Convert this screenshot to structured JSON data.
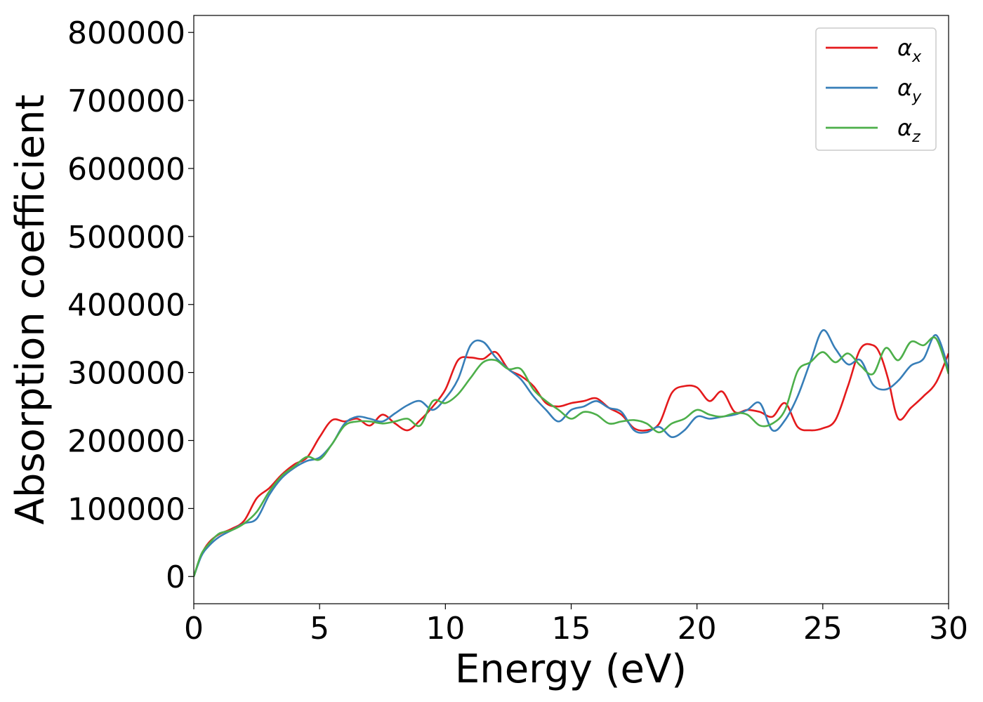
{
  "chart_data": {
    "type": "line",
    "title": "",
    "xlabel": "Energy (eV)",
    "ylabel": "Absorption coefficient",
    "xlim": [
      0,
      30
    ],
    "ylim": [
      -40000,
      825000
    ],
    "xticks": [
      0,
      5,
      10,
      15,
      20,
      25,
      30
    ],
    "yticks": [
      0,
      100000,
      200000,
      300000,
      400000,
      500000,
      600000,
      700000,
      800000
    ],
    "grid": false,
    "legend_position": "top-right",
    "series": [
      {
        "name": "α_x",
        "label_main": "α",
        "label_sub": "x",
        "color": "#e41a1c",
        "x": [
          0,
          0.3,
          0.6,
          1.0,
          1.5,
          2.0,
          2.5,
          3.0,
          3.5,
          4.0,
          4.5,
          5.0,
          5.5,
          6.0,
          6.5,
          7.0,
          7.5,
          8.0,
          8.5,
          9.0,
          9.5,
          10.0,
          10.5,
          11.0,
          11.5,
          12.0,
          12.5,
          13.0,
          13.5,
          14.0,
          14.5,
          15.0,
          15.5,
          16.0,
          16.5,
          17.0,
          17.5,
          18.0,
          18.5,
          19.0,
          19.5,
          20.0,
          20.5,
          21.0,
          21.5,
          22.0,
          22.5,
          23.0,
          23.5,
          24.0,
          24.5,
          25.0,
          25.5,
          26.0,
          26.5,
          27.0,
          27.3,
          27.6,
          28.0,
          28.5,
          29.0,
          29.5,
          30.0
        ],
        "y": [
          0,
          32000,
          50000,
          62000,
          70000,
          82000,
          115000,
          130000,
          150000,
          165000,
          175000,
          205000,
          230000,
          228000,
          232000,
          222000,
          238000,
          225000,
          215000,
          230000,
          250000,
          275000,
          318000,
          322000,
          320000,
          330000,
          305000,
          295000,
          280000,
          255000,
          250000,
          255000,
          258000,
          262000,
          248000,
          238000,
          218000,
          215000,
          225000,
          270000,
          280000,
          278000,
          258000,
          272000,
          242000,
          245000,
          242000,
          235000,
          255000,
          220000,
          215000,
          218000,
          230000,
          280000,
          335000,
          340000,
          325000,
          290000,
          232000,
          248000,
          265000,
          285000,
          328000
        ]
      },
      {
        "name": "α_y",
        "label_main": "α",
        "label_sub": "y",
        "color": "#377eb8",
        "x": [
          0,
          0.3,
          0.6,
          1.0,
          1.5,
          2.0,
          2.5,
          3.0,
          3.5,
          4.0,
          4.5,
          5.0,
          5.5,
          6.0,
          6.5,
          7.0,
          7.5,
          8.0,
          8.5,
          9.0,
          9.5,
          10.0,
          10.5,
          11.0,
          11.5,
          12.0,
          12.5,
          13.0,
          13.5,
          14.0,
          14.5,
          15.0,
          15.5,
          16.0,
          16.5,
          17.0,
          17.5,
          18.0,
          18.5,
          19.0,
          19.5,
          20.0,
          20.5,
          21.0,
          21.5,
          22.0,
          22.5,
          23.0,
          23.5,
          24.0,
          24.5,
          25.0,
          25.5,
          26.0,
          26.5,
          27.0,
          27.5,
          28.0,
          28.5,
          29.0,
          29.5,
          30.0
        ],
        "y": [
          0,
          30000,
          45000,
          58000,
          68000,
          78000,
          85000,
          120000,
          145000,
          160000,
          170000,
          175000,
          195000,
          225000,
          235000,
          232000,
          228000,
          240000,
          252000,
          258000,
          245000,
          262000,
          290000,
          340000,
          345000,
          322000,
          305000,
          290000,
          265000,
          245000,
          228000,
          245000,
          250000,
          258000,
          248000,
          242000,
          215000,
          212000,
          220000,
          205000,
          215000,
          235000,
          232000,
          235000,
          238000,
          245000,
          255000,
          215000,
          230000,
          265000,
          315000,
          362000,
          335000,
          312000,
          318000,
          282000,
          275000,
          288000,
          310000,
          320000,
          355000,
          305000
        ]
      },
      {
        "name": "α_z",
        "label_main": "α",
        "label_sub": "z",
        "color": "#4daf4a",
        "x": [
          0,
          0.3,
          0.6,
          1.0,
          1.5,
          2.0,
          2.5,
          3.0,
          3.5,
          4.0,
          4.5,
          5.0,
          5.5,
          6.0,
          6.5,
          7.0,
          7.5,
          8.0,
          8.5,
          9.0,
          9.5,
          10.0,
          10.5,
          11.0,
          11.5,
          12.0,
          12.5,
          13.0,
          13.5,
          14.0,
          14.5,
          15.0,
          15.5,
          16.0,
          16.5,
          17.0,
          17.5,
          18.0,
          18.5,
          19.0,
          19.5,
          20.0,
          20.5,
          21.0,
          21.5,
          22.0,
          22.5,
          23.0,
          23.5,
          24.0,
          24.5,
          25.0,
          25.5,
          26.0,
          26.5,
          27.0,
          27.5,
          28.0,
          28.5,
          29.0,
          29.5,
          30.0
        ],
        "y": [
          0,
          33000,
          48000,
          63000,
          68000,
          78000,
          95000,
          125000,
          148000,
          162000,
          176000,
          172000,
          195000,
          222000,
          228000,
          228000,
          225000,
          228000,
          232000,
          222000,
          258000,
          255000,
          268000,
          292000,
          315000,
          318000,
          305000,
          305000,
          275000,
          258000,
          245000,
          232000,
          242000,
          238000,
          225000,
          228000,
          230000,
          225000,
          212000,
          225000,
          232000,
          245000,
          238000,
          235000,
          240000,
          238000,
          222000,
          225000,
          245000,
          302000,
          315000,
          330000,
          315000,
          328000,
          310000,
          298000,
          336000,
          318000,
          345000,
          340000,
          350000,
          298000
        ]
      }
    ]
  }
}
